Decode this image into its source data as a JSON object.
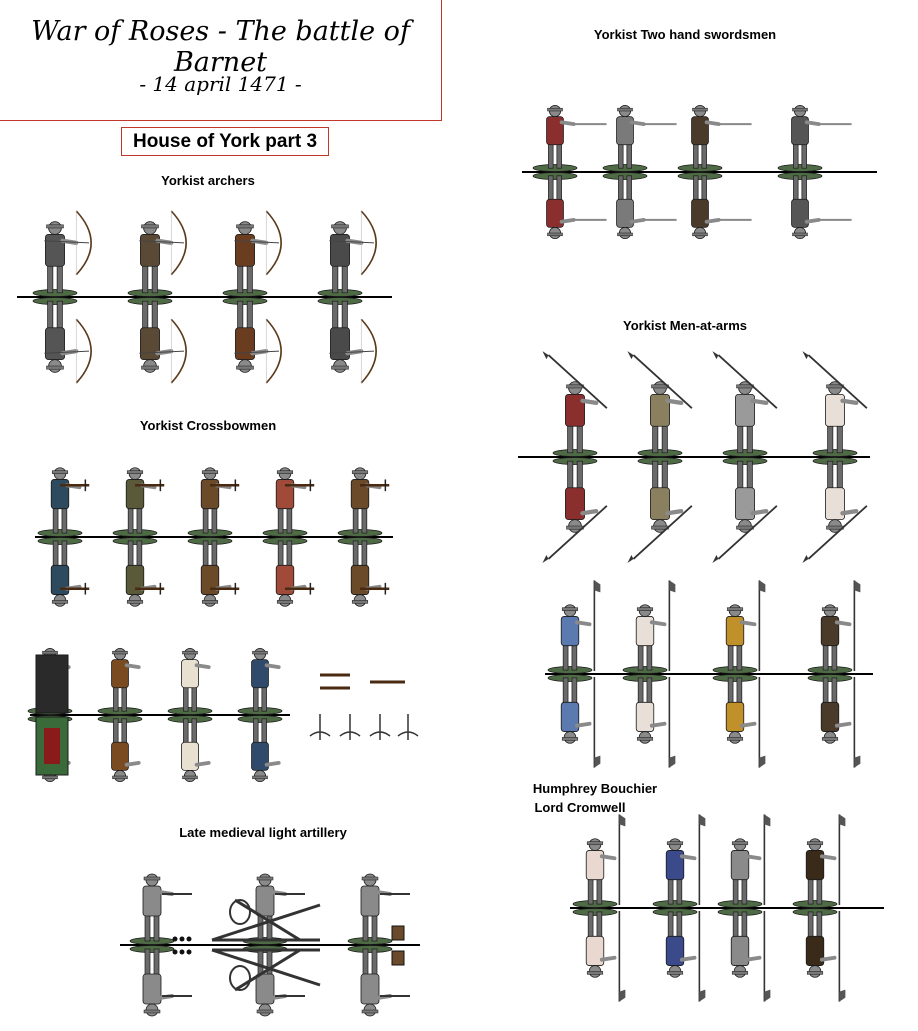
{
  "header": {
    "title": "War of Roses  - The battle of Barnet",
    "date": "- 14 april 1471 -"
  },
  "subtitle": "House of York part 3",
  "sections": {
    "archers": "Yorkist archers",
    "crossbowmen": "Yorkist Crossbowmen",
    "artillery": "Late medieval light artillery",
    "swordsmen": "Yorkist Two hand swordsmen",
    "men_at_arms": "Yorkist Men-at-arms",
    "commander_line1": "Humphrey  Bouchier",
    "commander_line2": "Lord Cromwell"
  },
  "colors": {
    "frame": "#c0392b",
    "base_green": "#4f6b46",
    "armour_grey": "#8a8a8a",
    "outline": "#1a1a1a"
  },
  "rows": [
    {
      "id": "archers",
      "count": 4,
      "weapon": "bow",
      "tunics": [
        "#555555",
        "#5a4a35",
        "#6b3d20",
        "#4a4a4a"
      ]
    },
    {
      "id": "crossbowmen",
      "count": 5,
      "weapon": "crossbow",
      "tunics": [
        "#2e4a5e",
        "#5a5a3a",
        "#6b4a2a",
        "#a04a3a",
        "#6b4a2a"
      ]
    },
    {
      "id": "pavisiers",
      "count": 4,
      "weapon": "pavise",
      "tunics": [
        "#3a3a3a",
        "#7a4a20",
        "#e8e0d0",
        "#2f4a6a"
      ]
    },
    {
      "id": "artillery",
      "count": 3,
      "weapon": "gun",
      "tunics": [
        "#8a8a8a",
        "#8a8a8a",
        "#8a8a8a"
      ]
    },
    {
      "id": "swordsmen",
      "count": 4,
      "weapon": "sword",
      "tunics": [
        "#8b2e2e",
        "#7a7a7a",
        "#4a3a2a",
        "#555555"
      ]
    },
    {
      "id": "maa1",
      "count": 4,
      "weapon": "halberd",
      "tunics": [
        "#8b2e2e",
        "#8a8060",
        "#9a9a9a",
        "#e8e0d8"
      ]
    },
    {
      "id": "maa2",
      "count": 4,
      "weapon": "poleaxe",
      "tunics": [
        "#5a7ab0",
        "#e8e0d8",
        "#c0902a",
        "#4a3a2a"
      ]
    },
    {
      "id": "commander",
      "count": 4,
      "weapon": "poleaxe",
      "tunics": [
        "#e8d8d0",
        "#3a4a8a",
        "#8a8a8a",
        "#3a2a1a"
      ]
    }
  ]
}
